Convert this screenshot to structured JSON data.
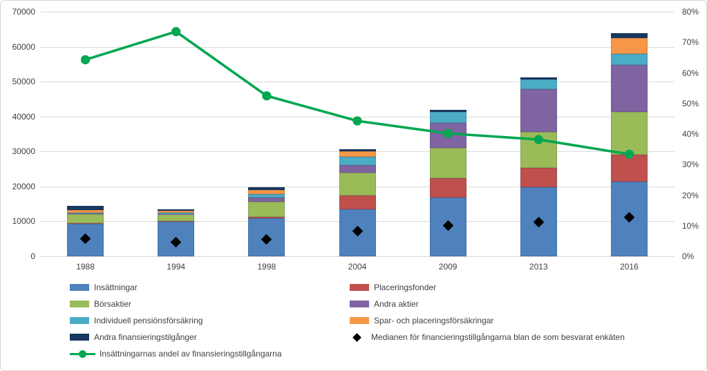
{
  "chart_data": {
    "type": "combo: stacked-bar + line + scatter",
    "title": "",
    "categories": [
      "1988",
      "1994",
      "1998",
      "2004",
      "2009",
      "2013",
      "2016"
    ],
    "series": [
      {
        "name": "Insättningar",
        "color": "#4f81bd",
        "values": [
          9300,
          9900,
          10800,
          13400,
          16800,
          19800,
          21400
        ]
      },
      {
        "name": "Placeringsfonder",
        "color": "#c0504d",
        "values": [
          100,
          100,
          500,
          4000,
          5500,
          5500,
          7600
        ]
      },
      {
        "name": "Börsaktier",
        "color": "#9bbb59",
        "values": [
          2700,
          2000,
          4400,
          6600,
          8800,
          10300,
          12300
        ]
      },
      {
        "name": "Andra aktier",
        "color": "#8064a2",
        "values": [
          100,
          100,
          1100,
          2200,
          7100,
          12200,
          13400
        ]
      },
      {
        "name": "Individuell pensiönsförsäkring",
        "color": "#4bacc6",
        "values": [
          300,
          400,
          900,
          2200,
          3100,
          2900,
          3200
        ]
      },
      {
        "name": "Spar- och placeringsförsäkringar",
        "color": "#f79646",
        "values": [
          800,
          600,
          1300,
          1600,
          0,
          0,
          4600
        ]
      },
      {
        "name": "Andra finansieringstilgånger",
        "color": "#17375e",
        "values": [
          1100,
          300,
          800,
          600,
          700,
          600,
          1400
        ]
      }
    ],
    "line_series": {
      "name": "Insättningarnas andel av finansieringstillgångarna",
      "color": "#00a650",
      "axis": "right",
      "values_pct": [
        64.3,
        73.5,
        52.5,
        44.3,
        40.2,
        38.2,
        33.4
      ]
    },
    "scatter_series": {
      "name": "Medianen för financieringstillgångarna blan de som besvarat enkäten",
      "color": "#000000",
      "axis": "left",
      "values": [
        5100,
        4000,
        4900,
        7200,
        8800,
        9700,
        11100
      ]
    },
    "left_axis": {
      "min": 0,
      "max": 70000,
      "step": 10000,
      "tick_labels": [
        "0",
        "10000",
        "20000",
        "30000",
        "40000",
        "50000",
        "60000",
        "70000"
      ]
    },
    "right_axis": {
      "min": 0,
      "max": 80,
      "step": 10,
      "tick_labels": [
        "0%",
        "10%",
        "20%",
        "30%",
        "40%",
        "50%",
        "60%",
        "70%",
        "80%"
      ]
    },
    "grid": true,
    "legend_position": "bottom",
    "colors": {
      "gridline": "#d9d9d9",
      "axis_text": "#404040",
      "background": "#ffffff",
      "frame_border": "#d8d4cd"
    }
  },
  "legend": {
    "col1": [
      {
        "kind": "box",
        "color": "#4f81bd",
        "label": "Insättningar"
      },
      {
        "kind": "box",
        "color": "#9bbb59",
        "label": "Börsaktier"
      },
      {
        "kind": "box",
        "color": "#4bacc6",
        "label": "Individuell pensiönsförsäkring"
      },
      {
        "kind": "box",
        "color": "#17375e",
        "label": "Andra finansieringstilgånger"
      },
      {
        "kind": "line",
        "color": "#00a650",
        "label": "Insättningarnas andel av finansieringstillgångarna"
      }
    ],
    "col2": [
      {
        "kind": "box",
        "color": "#c0504d",
        "label": "Placeringsfonder"
      },
      {
        "kind": "box",
        "color": "#8064a2",
        "label": "Andra aktier"
      },
      {
        "kind": "box",
        "color": "#f79646",
        "label": "Spar- och placeringsförsäkringar"
      },
      {
        "kind": "diamond",
        "color": "#000000",
        "label": "Medianen för financieringstillgångarna blan de som besvarat enkäten"
      }
    ]
  }
}
